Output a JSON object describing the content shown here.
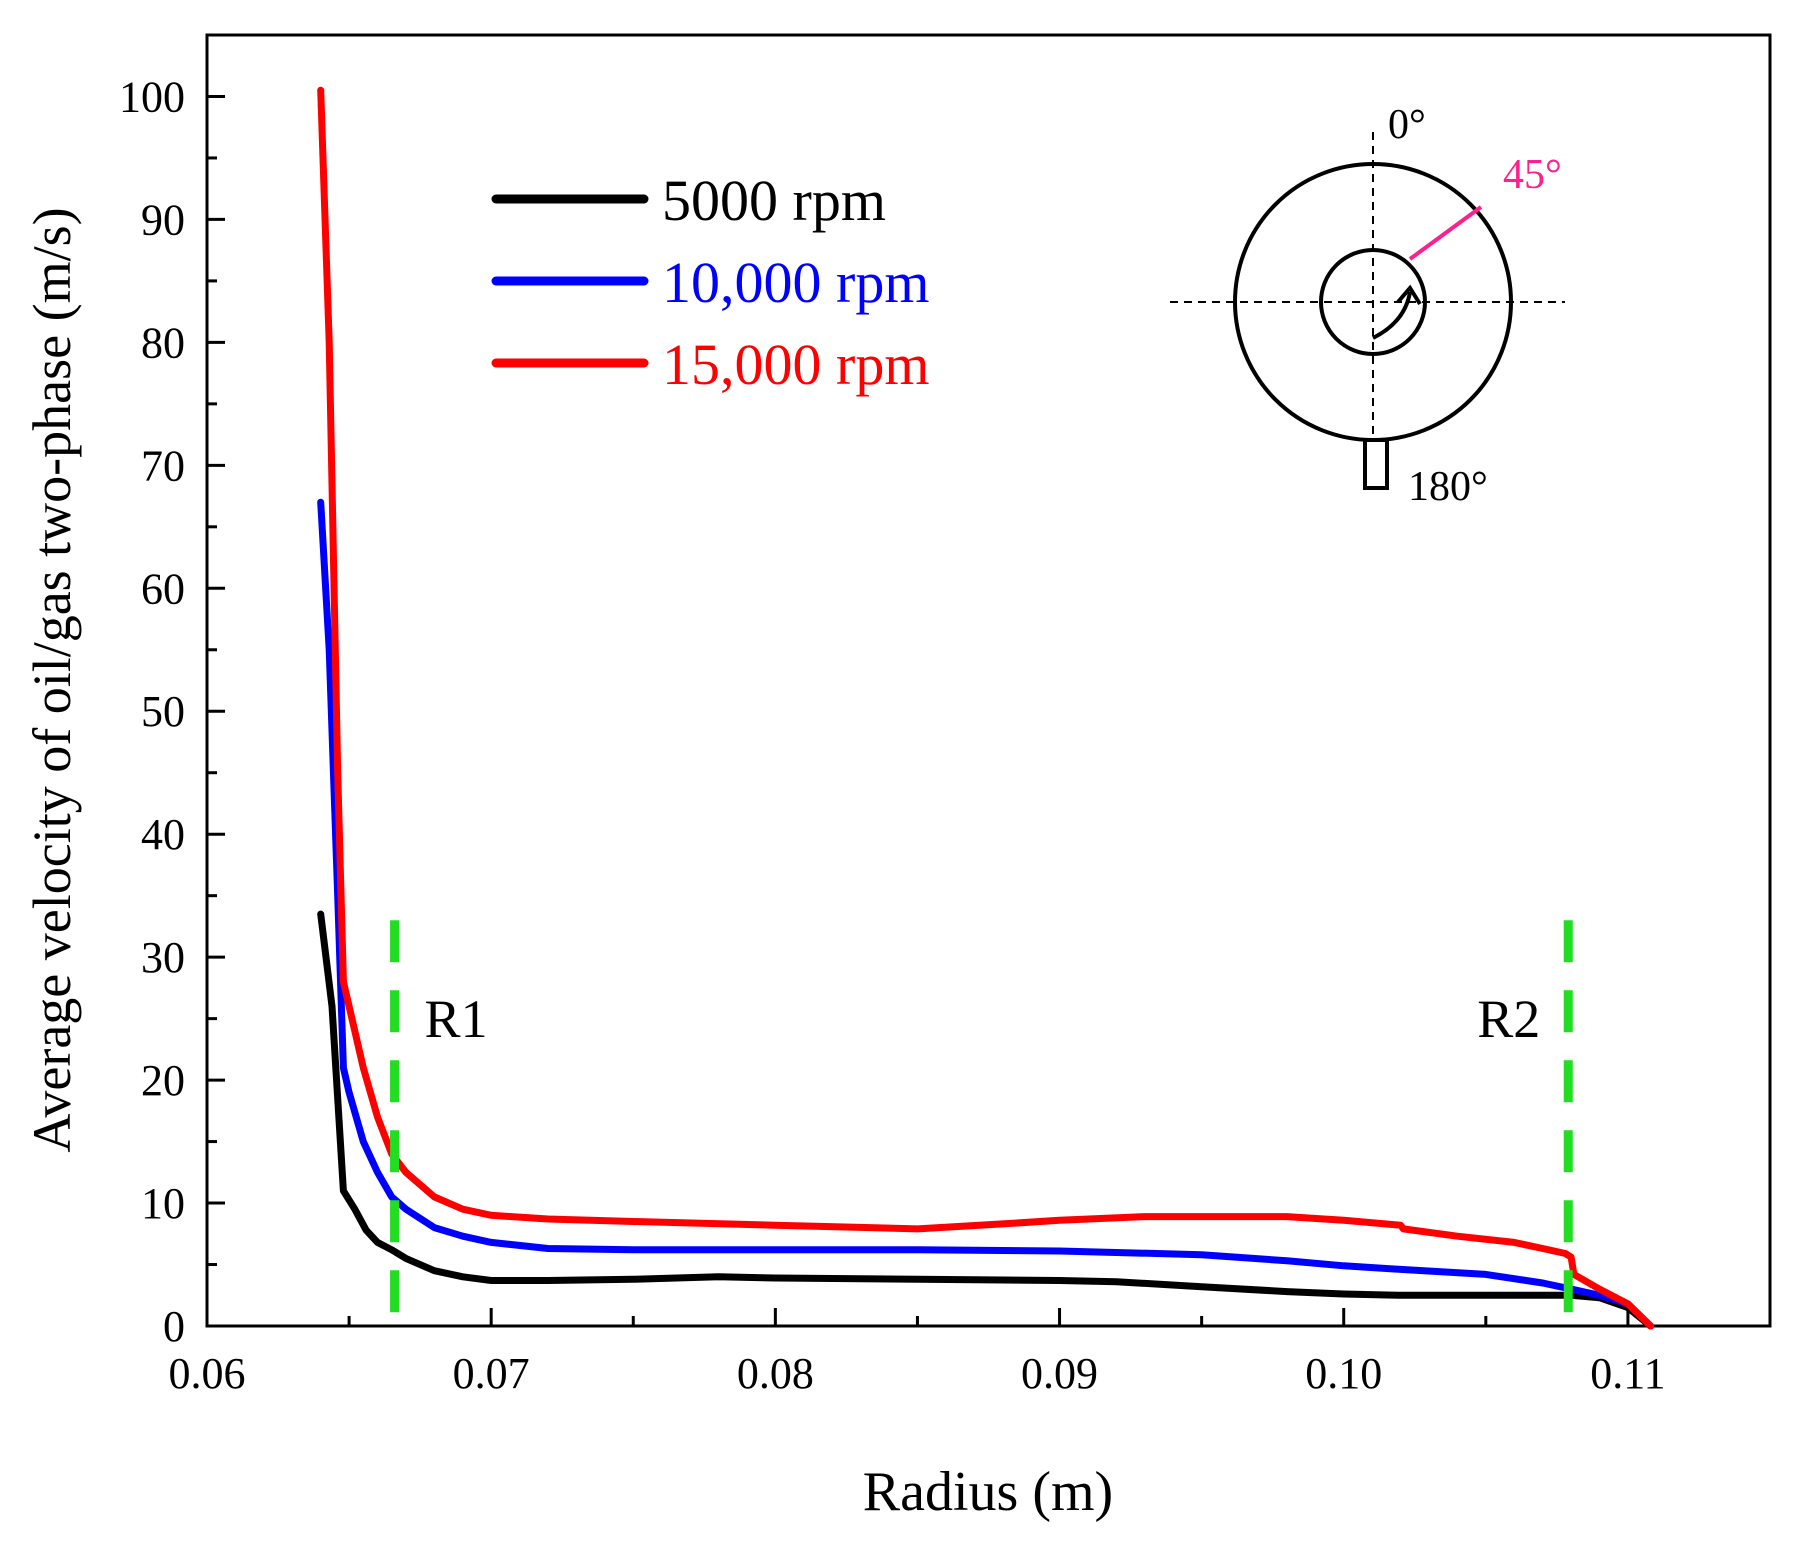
{
  "chart_data": {
    "type": "line",
    "xlabel": "Radius (m)",
    "ylabel": "Average velocity of oil/gas two-phase (m/s)",
    "xlim": [
      0.06,
      0.115
    ],
    "ylim": [
      0,
      105
    ],
    "x_ticks": [
      0.06,
      0.07,
      0.08,
      0.09,
      0.1,
      0.11
    ],
    "x_tick_labels": [
      "0.06",
      "0.07",
      "0.08",
      "0.09",
      "0.10",
      "0.11"
    ],
    "y_ticks": [
      0,
      10,
      20,
      30,
      40,
      50,
      60,
      70,
      80,
      90,
      100
    ],
    "y_tick_labels": [
      "0",
      "10",
      "20",
      "30",
      "40",
      "50",
      "60",
      "70",
      "80",
      "90",
      "100"
    ],
    "legend_position": "top-left",
    "series": [
      {
        "name": "5000 rpm",
        "color": "#000000",
        "x": [
          0.064,
          0.0644,
          0.0648,
          0.0652,
          0.0656,
          0.066,
          0.0665,
          0.067,
          0.068,
          0.069,
          0.07,
          0.072,
          0.075,
          0.078,
          0.08,
          0.085,
          0.09,
          0.092,
          0.095,
          0.098,
          0.1,
          0.102,
          0.104,
          0.106,
          0.108,
          0.109,
          0.11,
          0.1108
        ],
        "y": [
          33.5,
          26,
          11,
          9.5,
          7.8,
          6.8,
          6.2,
          5.5,
          4.5,
          4.0,
          3.7,
          3.7,
          3.8,
          4.0,
          3.9,
          3.8,
          3.7,
          3.6,
          3.2,
          2.8,
          2.6,
          2.5,
          2.5,
          2.5,
          2.5,
          2.3,
          1.5,
          0
        ]
      },
      {
        "name": "10,000 rpm",
        "color": "#0000ff",
        "x": [
          0.064,
          0.0643,
          0.0646,
          0.0648,
          0.065,
          0.0655,
          0.066,
          0.0665,
          0.067,
          0.068,
          0.069,
          0.07,
          0.072,
          0.075,
          0.08,
          0.085,
          0.09,
          0.095,
          0.098,
          0.1,
          0.102,
          0.105,
          0.107,
          0.108,
          0.109,
          0.11,
          0.1108
        ],
        "y": [
          67,
          55,
          35,
          21,
          19,
          15,
          12.5,
          10.5,
          9.5,
          8.0,
          7.3,
          6.8,
          6.3,
          6.2,
          6.2,
          6.2,
          6.1,
          5.8,
          5.3,
          4.9,
          4.6,
          4.2,
          3.5,
          3.0,
          2.5,
          1.8,
          0
        ]
      },
      {
        "name": "15,000 rpm",
        "color": "#ff0000",
        "x": [
          0.064,
          0.0643,
          0.0646,
          0.0648,
          0.065,
          0.0655,
          0.066,
          0.0665,
          0.067,
          0.068,
          0.069,
          0.07,
          0.072,
          0.075,
          0.08,
          0.085,
          0.088,
          0.09,
          0.093,
          0.095,
          0.098,
          0.1,
          0.102,
          0.1021,
          0.104,
          0.106,
          0.107,
          0.1078,
          0.108,
          0.1081,
          0.109,
          0.11,
          0.1108
        ],
        "y": [
          100.5,
          80,
          45,
          28,
          26,
          21,
          17,
          14,
          12.5,
          10.5,
          9.5,
          9.0,
          8.7,
          8.5,
          8.2,
          7.9,
          8.3,
          8.6,
          8.9,
          8.9,
          8.9,
          8.6,
          8.2,
          7.9,
          7.3,
          6.8,
          6.3,
          5.9,
          5.6,
          4.2,
          3.0,
          1.8,
          0
        ]
      }
    ],
    "markers": [
      {
        "label": "R1",
        "x": 0.0666,
        "color": "#22dd22",
        "style": "dashed"
      },
      {
        "label": "R2",
        "x": 0.1079,
        "color": "#22dd22",
        "style": "dashed"
      }
    ],
    "inset": {
      "labels": {
        "top": "0°",
        "angle": "45°",
        "bottom": "180°"
      },
      "angle_color": "#ff1f8f"
    }
  }
}
